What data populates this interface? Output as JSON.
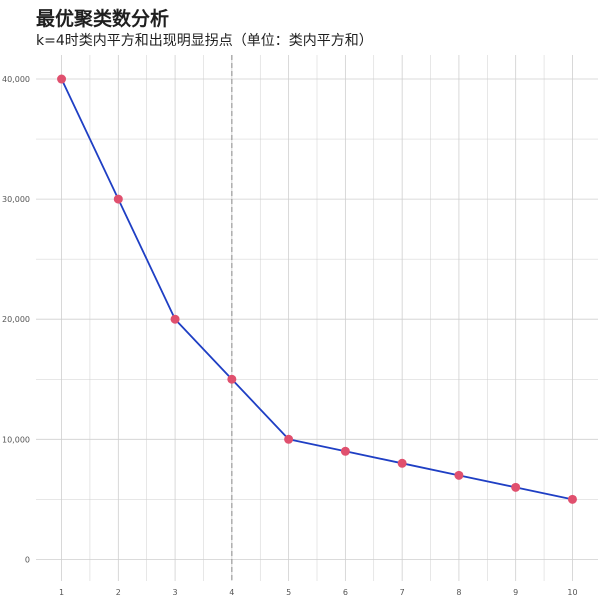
{
  "chart_data": {
    "type": "line",
    "title": "最优聚类数分析",
    "subtitle": "k=4时类内平方和出现明显拐点（单位：类内平方和）",
    "xlabel": "",
    "ylabel": "",
    "x": [
      1,
      2,
      3,
      4,
      5,
      6,
      7,
      8,
      9,
      10
    ],
    "series": [
      {
        "values": [
          40000,
          30000,
          20000,
          15000,
          10000,
          9000,
          8000,
          7000,
          6000,
          5000
        ]
      }
    ],
    "xlim": [
      0.55,
      10.45
    ],
    "ylim": [
      -1800,
      42000
    ],
    "x_ticks": [
      1,
      2,
      3,
      4,
      5,
      6,
      7,
      8,
      9,
      10
    ],
    "x_tick_labels": [
      "1",
      "2",
      "3",
      "4",
      "5",
      "6",
      "7",
      "8",
      "9",
      "10"
    ],
    "y_ticks": [
      0,
      10000,
      20000,
      30000,
      40000
    ],
    "y_tick_labels": [
      "0",
      "10,000",
      "20,000",
      "30,000",
      "40,000"
    ],
    "reference_line_x": 4,
    "grid": true,
    "legend": "none",
    "colors": {
      "line": "#1f3fc4",
      "marker": "#e0506e",
      "grid": "#cfcfcf",
      "reference_line": "#8a8a8a"
    }
  }
}
